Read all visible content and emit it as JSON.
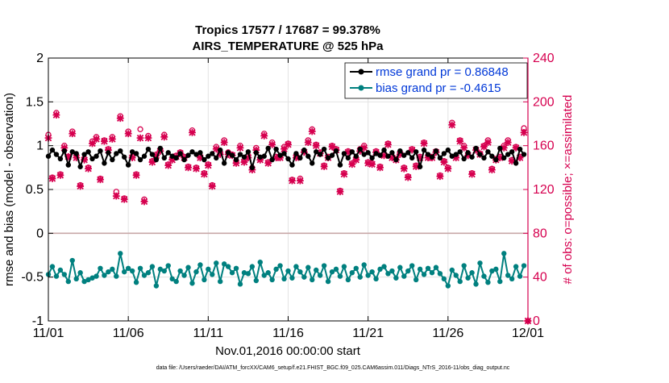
{
  "chart_data": {
    "type": "line",
    "title": "Tropics 17577 / 17687 = 99.378%",
    "subtitle": "AIRS_TEMPERATURE @ 525 hPa",
    "xlabel": "Nov.01,2016 00:00:00 start",
    "ylabel_left": "rmse and bias (model - observation)",
    "ylabel_right": "# of obs: o=possible; ×=assimilated",
    "ylim_left": [
      -1,
      2
    ],
    "ylim_right": [
      0,
      240
    ],
    "xlim": [
      0,
      30
    ],
    "x_tick_labels": [
      "11/01",
      "11/06",
      "11/11",
      "11/16",
      "11/21",
      "11/26",
      "12/01"
    ],
    "x_tick_values": [
      0,
      5,
      10,
      15,
      20,
      25,
      30
    ],
    "y_left_tick_labels": [
      "-1",
      "-0.5",
      "0",
      "0.5",
      "1",
      "1.5",
      "2"
    ],
    "y_left_tick_values": [
      -1,
      -0.5,
      0,
      0.5,
      1,
      1.5,
      2
    ],
    "y_right_tick_labels": [
      "0",
      "40",
      "80",
      "120",
      "160",
      "200",
      "240"
    ],
    "y_right_tick_values": [
      0,
      40,
      80,
      120,
      160,
      200,
      240
    ],
    "grid": true,
    "legend_position": "top-right",
    "colors": {
      "rmse": "#000000",
      "bias": "#00807f",
      "obs": "#d6004f",
      "zero_line": "#c8a8a8",
      "legend_text": "#0038d8"
    },
    "series": [
      {
        "name": "rmse grand pr = 0.86848",
        "key": "rmse",
        "axis": "left",
        "x": [
          0.0,
          0.25,
          0.5,
          0.75,
          1.0,
          1.25,
          1.5,
          1.75,
          2.0,
          2.25,
          2.5,
          2.75,
          3.0,
          3.25,
          3.5,
          3.75,
          4.0,
          4.25,
          4.5,
          4.75,
          5.0,
          5.25,
          5.5,
          5.75,
          6.0,
          6.25,
          6.5,
          6.75,
          7.0,
          7.25,
          7.5,
          7.75,
          8.0,
          8.25,
          8.5,
          8.75,
          9.0,
          9.25,
          9.5,
          9.75,
          10.0,
          10.25,
          10.5,
          10.75,
          11.0,
          11.25,
          11.5,
          11.75,
          12.0,
          12.25,
          12.5,
          12.75,
          13.0,
          13.25,
          13.5,
          13.75,
          14.0,
          14.25,
          14.5,
          14.75,
          15.0,
          15.25,
          15.5,
          15.75,
          16.0,
          16.25,
          16.5,
          16.75,
          17.0,
          17.25,
          17.5,
          17.75,
          18.0,
          18.25,
          18.5,
          18.75,
          19.0,
          19.25,
          19.5,
          19.75,
          20.0,
          20.25,
          20.5,
          20.75,
          21.0,
          21.25,
          21.5,
          21.75,
          22.0,
          22.25,
          22.5,
          22.75,
          23.0,
          23.25,
          23.5,
          23.75,
          24.0,
          24.25,
          24.5,
          24.75,
          25.0,
          25.25,
          25.5,
          25.75,
          26.0,
          26.25,
          26.5,
          26.75,
          27.0,
          27.25,
          27.5,
          27.75,
          28.0,
          28.25,
          28.5,
          28.75,
          29.0,
          29.25,
          29.5,
          29.75
        ],
        "values": [
          0.88,
          0.95,
          0.9,
          0.85,
          0.94,
          0.78,
          0.93,
          0.91,
          0.76,
          0.9,
          0.93,
          0.85,
          0.88,
          0.94,
          0.8,
          0.92,
          0.84,
          0.91,
          0.94,
          0.87,
          0.78,
          0.93,
          0.91,
          0.84,
          0.88,
          0.96,
          0.9,
          0.84,
          0.97,
          0.86,
          0.92,
          0.88,
          0.86,
          0.91,
          0.84,
          0.89,
          0.93,
          0.9,
          0.92,
          0.84,
          0.88,
          0.91,
          0.86,
          0.95,
          0.8,
          0.92,
          0.89,
          0.84,
          0.9,
          0.87,
          0.93,
          0.75,
          0.92,
          0.87,
          0.88,
          0.97,
          0.84,
          0.96,
          0.89,
          0.91,
          0.85,
          0.78,
          0.91,
          0.86,
          0.95,
          0.88,
          0.8,
          0.93,
          0.9,
          0.96,
          0.86,
          0.89,
          0.94,
          0.78,
          0.91,
          0.86,
          0.93,
          0.88,
          0.96,
          0.9,
          0.92,
          0.86,
          0.91,
          0.89,
          0.95,
          0.88,
          0.92,
          0.84,
          0.94,
          0.89,
          0.92,
          0.86,
          0.93,
          0.76,
          0.95,
          0.9,
          0.87,
          0.94,
          0.86,
          0.91,
          0.95,
          0.88,
          0.9,
          0.93,
          0.85,
          0.92,
          0.87,
          0.97,
          0.9,
          0.86,
          0.93,
          0.88,
          0.84,
          0.97,
          0.86,
          0.9,
          0.93,
          0.8,
          0.96,
          0.9
        ]
      },
      {
        "name": "bias grand pr = -0.4615",
        "key": "bias",
        "axis": "left",
        "x": [
          0.0,
          0.25,
          0.5,
          0.75,
          1.0,
          1.25,
          1.5,
          1.75,
          2.0,
          2.25,
          2.5,
          2.75,
          3.0,
          3.25,
          3.5,
          3.75,
          4.0,
          4.25,
          4.5,
          4.75,
          5.0,
          5.25,
          5.5,
          5.75,
          6.0,
          6.25,
          6.5,
          6.75,
          7.0,
          7.25,
          7.5,
          7.75,
          8.0,
          8.25,
          8.5,
          8.75,
          9.0,
          9.25,
          9.5,
          9.75,
          10.0,
          10.25,
          10.5,
          10.75,
          11.0,
          11.25,
          11.5,
          11.75,
          12.0,
          12.25,
          12.5,
          12.75,
          13.0,
          13.25,
          13.5,
          13.75,
          14.0,
          14.25,
          14.5,
          14.75,
          15.0,
          15.25,
          15.5,
          15.75,
          16.0,
          16.25,
          16.5,
          16.75,
          17.0,
          17.25,
          17.5,
          17.75,
          18.0,
          18.25,
          18.5,
          18.75,
          19.0,
          19.25,
          19.5,
          19.75,
          20.0,
          20.25,
          20.5,
          20.75,
          21.0,
          21.25,
          21.5,
          21.75,
          22.0,
          22.25,
          22.5,
          22.75,
          23.0,
          23.25,
          23.5,
          23.75,
          24.0,
          24.25,
          24.5,
          24.75,
          25.0,
          25.25,
          25.5,
          25.75,
          26.0,
          26.25,
          26.5,
          26.75,
          27.0,
          27.25,
          27.5,
          27.75,
          28.0,
          28.25,
          28.5,
          28.75,
          29.0,
          29.25,
          29.5,
          29.75
        ],
        "values": [
          -0.47,
          -0.38,
          -0.49,
          -0.42,
          -0.47,
          -0.55,
          -0.31,
          -0.52,
          -0.45,
          -0.55,
          -0.53,
          -0.51,
          -0.49,
          -0.4,
          -0.48,
          -0.44,
          -0.41,
          -0.49,
          -0.23,
          -0.44,
          -0.4,
          -0.43,
          -0.56,
          -0.4,
          -0.48,
          -0.45,
          -0.38,
          -0.6,
          -0.41,
          -0.43,
          -0.37,
          -0.52,
          -0.55,
          -0.43,
          -0.48,
          -0.39,
          -0.57,
          -0.44,
          -0.36,
          -0.53,
          -0.41,
          -0.47,
          -0.34,
          -0.55,
          -0.35,
          -0.38,
          -0.45,
          -0.4,
          -0.58,
          -0.45,
          -0.46,
          -0.38,
          -0.54,
          -0.33,
          -0.48,
          -0.45,
          -0.53,
          -0.41,
          -0.37,
          -0.52,
          -0.43,
          -0.51,
          -0.38,
          -0.44,
          -0.5,
          -0.39,
          -0.53,
          -0.42,
          -0.48,
          -0.37,
          -0.55,
          -0.44,
          -0.41,
          -0.49,
          -0.38,
          -0.53,
          -0.45,
          -0.4,
          -0.5,
          -0.36,
          -0.48,
          -0.44,
          -0.52,
          -0.41,
          -0.38,
          -0.46,
          -0.43,
          -0.51,
          -0.39,
          -0.49,
          -0.43,
          -0.37,
          -0.53,
          -0.41,
          -0.47,
          -0.4,
          -0.45,
          -0.39,
          -0.46,
          -0.52,
          -0.6,
          -0.42,
          -0.48,
          -0.55,
          -0.37,
          -0.51,
          -0.45,
          -0.58,
          -0.34,
          -0.49,
          -0.56,
          -0.43,
          -0.41,
          -0.55,
          -0.23,
          -0.48,
          -0.52,
          -0.38,
          -0.49,
          -0.37
        ]
      },
      {
        "name": "obs possible (o)",
        "key": "obs_possible",
        "axis": "right",
        "x": [
          0.0,
          0.25,
          0.5,
          0.75,
          1.0,
          1.25,
          1.5,
          1.75,
          2.0,
          2.25,
          2.5,
          2.75,
          3.0,
          3.25,
          3.5,
          3.75,
          4.0,
          4.25,
          4.5,
          4.75,
          5.0,
          5.25,
          5.5,
          5.75,
          6.0,
          6.25,
          6.5,
          6.75,
          7.0,
          7.25,
          7.5,
          7.75,
          8.0,
          8.25,
          8.5,
          8.75,
          9.0,
          9.25,
          9.5,
          9.75,
          10.0,
          10.25,
          10.5,
          10.75,
          11.0,
          11.25,
          11.5,
          11.75,
          12.0,
          12.25,
          12.5,
          12.75,
          13.0,
          13.25,
          13.5,
          13.75,
          14.0,
          14.25,
          14.5,
          14.75,
          15.0,
          15.25,
          15.5,
          15.75,
          16.0,
          16.25,
          16.5,
          16.75,
          17.0,
          17.25,
          17.5,
          17.75,
          18.0,
          18.25,
          18.5,
          18.75,
          19.0,
          19.25,
          19.5,
          19.75,
          20.0,
          20.25,
          20.5,
          20.75,
          21.0,
          21.25,
          21.5,
          21.75,
          22.0,
          22.25,
          22.5,
          22.75,
          23.0,
          23.25,
          23.5,
          23.75,
          24.0,
          24.25,
          24.5,
          24.75,
          25.0,
          25.25,
          25.5,
          25.75,
          26.0,
          26.25,
          26.5,
          26.75,
          27.0,
          27.25,
          27.5,
          27.75,
          28.0,
          28.25,
          28.5,
          28.75,
          29.0,
          29.25,
          29.5,
          29.75,
          30.0
        ],
        "values": [
          170,
          131,
          190,
          134,
          160,
          150,
          173,
          151,
          124,
          148,
          140,
          164,
          168,
          130,
          165,
          157,
          168,
          118,
          187,
          112,
          173,
          150,
          134,
          175,
          111,
          169,
          146,
          152,
          156,
          170,
          143,
          148,
          151,
          154,
          150,
          141,
          174,
          140,
          150,
          135,
          143,
          124,
          159,
          153,
          165,
          154,
          152,
          145,
          160,
          146,
          151,
          140,
          158,
          148,
          171,
          145,
          163,
          150,
          150,
          159,
          162,
          129,
          151,
          130,
          155,
          165,
          175,
          161,
          154,
          142,
          150,
          160,
          157,
          119,
          135,
          155,
          144,
          148,
          157,
          160,
          145,
          144,
          155,
          141,
          152,
          162,
          150,
          148,
          153,
          140,
          132,
          157,
          142,
          150,
          163,
          151,
          150,
          155,
          133,
          146,
          140,
          181,
          150,
          165,
          160,
          152,
          135,
          157,
          153,
          160,
          165,
          139,
          148,
          150,
          160,
          165,
          147,
          159,
          150,
          176,
          0
        ]
      },
      {
        "name": "obs assimilated (×)",
        "key": "obs_assimilated",
        "axis": "right",
        "x": [
          0.0,
          0.25,
          0.5,
          0.75,
          1.0,
          1.25,
          1.5,
          1.75,
          2.0,
          2.25,
          2.5,
          2.75,
          3.0,
          3.25,
          3.5,
          3.75,
          4.0,
          4.25,
          4.5,
          4.75,
          5.0,
          5.25,
          5.5,
          5.75,
          6.0,
          6.25,
          6.5,
          6.75,
          7.0,
          7.25,
          7.5,
          7.75,
          8.0,
          8.25,
          8.5,
          8.75,
          9.0,
          9.25,
          9.5,
          9.75,
          10.0,
          10.25,
          10.5,
          10.75,
          11.0,
          11.25,
          11.5,
          11.75,
          12.0,
          12.25,
          12.5,
          12.75,
          13.0,
          13.25,
          13.5,
          13.75,
          14.0,
          14.25,
          14.5,
          14.75,
          15.0,
          15.25,
          15.5,
          15.75,
          16.0,
          16.25,
          16.5,
          16.75,
          17.0,
          17.25,
          17.5,
          17.75,
          18.0,
          18.25,
          18.5,
          18.75,
          19.0,
          19.25,
          19.5,
          19.75,
          20.0,
          20.25,
          20.5,
          20.75,
          21.0,
          21.25,
          21.5,
          21.75,
          22.0,
          22.25,
          22.5,
          22.75,
          23.0,
          23.25,
          23.5,
          23.75,
          24.0,
          24.25,
          24.5,
          24.75,
          25.0,
          25.25,
          25.5,
          25.75,
          26.0,
          26.25,
          26.5,
          26.75,
          27.0,
          27.25,
          27.5,
          27.75,
          28.0,
          28.25,
          28.5,
          28.75,
          29.0,
          29.25,
          29.5,
          29.75,
          30.0
        ],
        "values": [
          167,
          130,
          188,
          133,
          158,
          150,
          171,
          149,
          123,
          147,
          139,
          162,
          166,
          129,
          164,
          156,
          166,
          114,
          185,
          111,
          171,
          149,
          133,
          167,
          109,
          167,
          145,
          151,
          155,
          168,
          142,
          147,
          150,
          153,
          149,
          140,
          172,
          139,
          149,
          134,
          142,
          123,
          157,
          152,
          163,
          152,
          151,
          144,
          158,
          145,
          149,
          138,
          156,
          147,
          169,
          144,
          161,
          149,
          149,
          157,
          161,
          128,
          149,
          128,
          154,
          163,
          173,
          160,
          153,
          141,
          149,
          159,
          156,
          118,
          134,
          154,
          143,
          147,
          155,
          158,
          144,
          143,
          154,
          140,
          151,
          161,
          149,
          147,
          152,
          139,
          131,
          156,
          141,
          149,
          162,
          149,
          149,
          154,
          132,
          145,
          139,
          179,
          149,
          164,
          158,
          151,
          134,
          156,
          152,
          159,
          163,
          138,
          147,
          149,
          158,
          163,
          146,
          158,
          149,
          172,
          0
        ]
      }
    ],
    "legend": [
      {
        "key": "rmse",
        "label": "rmse grand pr = 0.86848"
      },
      {
        "key": "bias",
        "label": "bias grand pr = -0.4615"
      }
    ],
    "footnote": "data file: /Users/raeder/DAI/ATM_forcXX/CAM6_setup/f.e21.FHIST_BGC.f09_025.CAM6assim.011/Diags_NTrS_2016-11/obs_diag_output.nc"
  }
}
